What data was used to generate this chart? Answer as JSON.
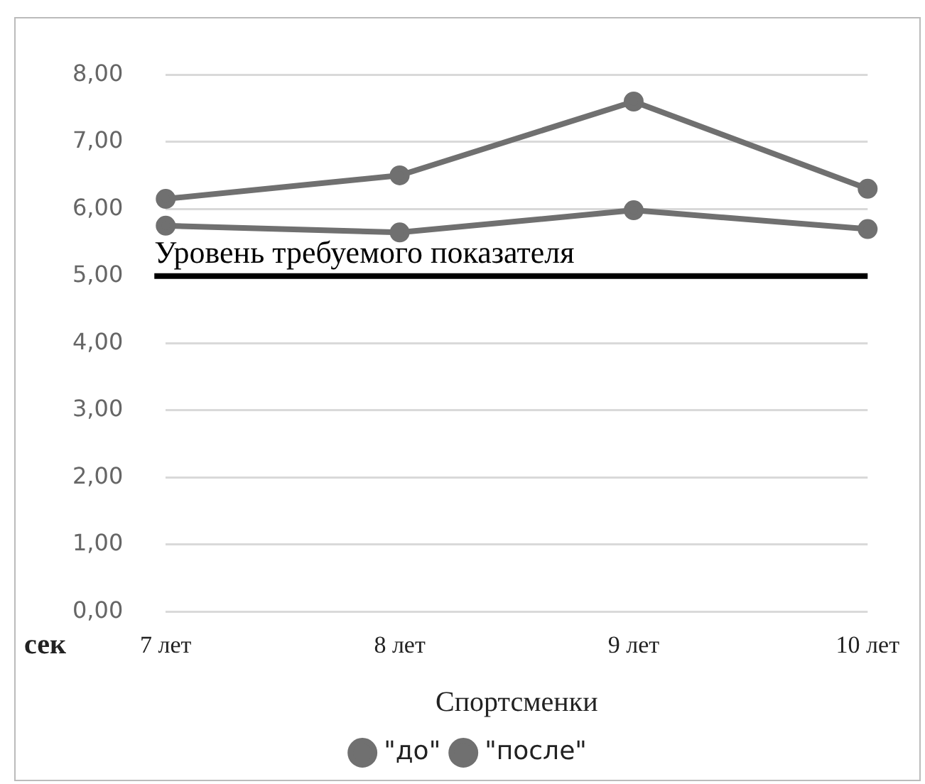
{
  "chart_data": {
    "type": "line",
    "xlabel": "Спортсменки",
    "ylabel": "сек",
    "categories": [
      "7 лет",
      "8 лет",
      "9 лет",
      "10 лет"
    ],
    "series": [
      {
        "name": "\"до\"",
        "color": "#707070",
        "values": [
          6.15,
          6.5,
          7.6,
          6.3
        ]
      },
      {
        "name": "\"после\"",
        "color": "#707070",
        "values": [
          5.75,
          5.65,
          5.98,
          5.7
        ]
      }
    ],
    "ylim": [
      0,
      8
    ],
    "yticks": [
      {
        "value": 0,
        "label": "0,00"
      },
      {
        "value": 1,
        "label": "1,00"
      },
      {
        "value": 2,
        "label": "2,00"
      },
      {
        "value": 3,
        "label": "3,00"
      },
      {
        "value": 4,
        "label": "4,00"
      },
      {
        "value": 5,
        "label": "5,00"
      },
      {
        "value": 6,
        "label": "6,00"
      },
      {
        "value": 7,
        "label": "7,00"
      },
      {
        "value": 8,
        "label": "8,00"
      }
    ],
    "ref_lines": [
      {
        "axis": "y",
        "value": 5,
        "label": "Уровень требуемого показателя",
        "color": "#000000"
      }
    ],
    "grid": "y",
    "legend": "bottom",
    "marker": "circle",
    "line_style": "solid"
  }
}
